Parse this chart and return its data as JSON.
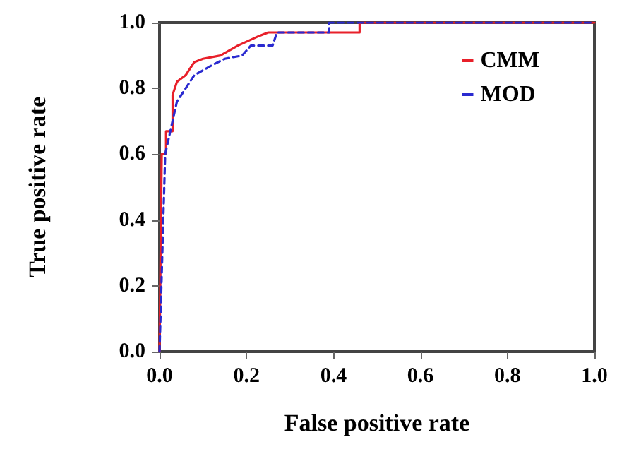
{
  "chart_data": {
    "type": "line",
    "xlabel": "False positive rate",
    "ylabel": "True positive rate",
    "xlim": [
      0,
      1
    ],
    "ylim": [
      0,
      1
    ],
    "xticks": [
      {
        "value": 0,
        "label": "0.0"
      },
      {
        "value": 0.2,
        "label": "0.2"
      },
      {
        "value": 0.4,
        "label": "0.4"
      },
      {
        "value": 0.6,
        "label": "0.6"
      },
      {
        "value": 0.8,
        "label": "0.8"
      },
      {
        "value": 1,
        "label": "1.0"
      }
    ],
    "yticks": [
      {
        "value": 0,
        "label": "0.0"
      },
      {
        "value": 0.2,
        "label": "0.2"
      },
      {
        "value": 0.4,
        "label": "0.4"
      },
      {
        "value": 0.6,
        "label": "0.6"
      },
      {
        "value": 0.8,
        "label": "0.8"
      },
      {
        "value": 1,
        "label": "1.0"
      }
    ],
    "grid": false,
    "legend": "top right",
    "marker": "none",
    "series": [
      {
        "name": "CMM",
        "color": "#e8202a",
        "line_style": "solid",
        "x": [
          0,
          0.005,
          0.015,
          0.015,
          0.03,
          0.03,
          0.04,
          0.06,
          0.08,
          0.1,
          0.14,
          0.18,
          0.23,
          0.25,
          0.46,
          0.46,
          1
        ],
        "values": [
          0,
          0.6,
          0.6,
          0.67,
          0.67,
          0.78,
          0.82,
          0.84,
          0.88,
          0.89,
          0.9,
          0.93,
          0.96,
          0.97,
          0.97,
          1,
          1
        ]
      },
      {
        "name": "MOD",
        "color": "#2a2ad0",
        "line_style": "dashed",
        "x": [
          0,
          0.013,
          0.04,
          0.055,
          0.08,
          0.12,
          0.15,
          0.19,
          0.21,
          0.26,
          0.27,
          0.39,
          0.39,
          1
        ],
        "values": [
          0,
          0.6,
          0.76,
          0.79,
          0.84,
          0.87,
          0.89,
          0.9,
          0.93,
          0.93,
          0.97,
          0.97,
          1,
          1
        ]
      }
    ]
  }
}
